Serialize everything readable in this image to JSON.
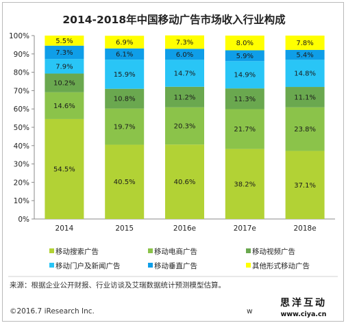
{
  "chart_data": {
    "type": "bar",
    "stacked": true,
    "title": "2014-2018年中国移动广告市场收入行业构成",
    "categories": [
      "2014",
      "2015",
      "2016e",
      "2017e",
      "2018e"
    ],
    "ylim": [
      0,
      100
    ],
    "yticks": [
      "0%",
      "10%",
      "20%",
      "30%",
      "40%",
      "50%",
      "60%",
      "70%",
      "80%",
      "90%",
      "100%"
    ],
    "legend_position": "bottom",
    "grid": false,
    "series": [
      {
        "name": "移动搜索广告",
        "color": "#b2d235",
        "values": [
          54.5,
          40.5,
          40.6,
          38.2,
          37.1
        ]
      },
      {
        "name": "移动电商广告",
        "color": "#8bc34a",
        "values": [
          14.6,
          19.7,
          20.3,
          21.7,
          23.8
        ]
      },
      {
        "name": "移动视频广告",
        "color": "#6aa84f",
        "values": [
          10.2,
          10.8,
          11.2,
          11.3,
          11.1
        ]
      },
      {
        "name": "移动门户及新闻广告",
        "color": "#29c5f6",
        "values": [
          7.9,
          15.9,
          14.7,
          14.9,
          14.8
        ]
      },
      {
        "name": "移动垂直广告",
        "color": "#0f9ee8",
        "values": [
          7.3,
          6.1,
          6.0,
          5.9,
          5.4
        ]
      },
      {
        "name": "其他形式移动广告",
        "color": "#ffff00",
        "values": [
          5.5,
          6.9,
          7.3,
          8.0,
          7.8
        ]
      }
    ],
    "labels": [
      [
        "54.5%",
        "14.6%",
        "10.2%",
        "7.9%",
        "7.3%",
        "5.5%"
      ],
      [
        "40.5%",
        "19.7%",
        "10.8%",
        "15.9%",
        "6.1%",
        "6.9%"
      ],
      [
        "40.6%",
        "20.3%",
        "11.2%",
        "14.7%",
        "6.0%",
        "7.3%"
      ],
      [
        "38.2%",
        "21.7%",
        "11.3%",
        "14.9%",
        "5.9%",
        "8.0%"
      ],
      [
        "37.1%",
        "23.8%",
        "11.1%",
        "14.8%",
        "5.4%",
        "7.8%"
      ]
    ]
  },
  "footer": {
    "source": "来源：根据企业公开财报、行业访谈及艾瑞数据统计预测模型估算。",
    "copyright": "©2016.7 iResearch Inc.",
    "www_partial": "w"
  },
  "watermark": {
    "text": "思洋互动",
    "url": "www.ciya.cn"
  }
}
